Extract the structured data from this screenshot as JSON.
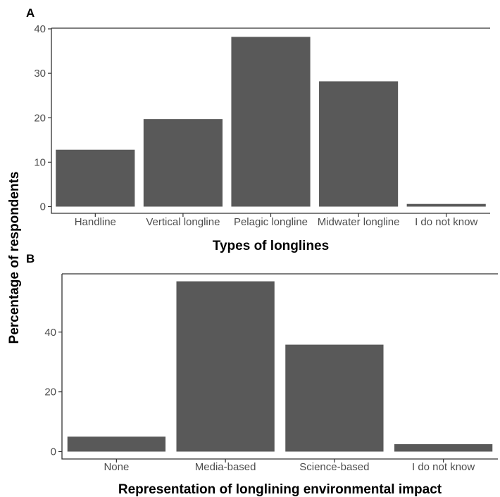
{
  "ylabel": "Percentage of respondents",
  "bar_color": "#595959",
  "chart_data": [
    {
      "type": "bar",
      "panel": "A",
      "title": "",
      "xlabel": "Types of longlines",
      "ylabel": "Percentage of respondents",
      "categories": [
        "Handline",
        "Vertical longline",
        "Pelagic longline",
        "Midwater longline",
        "I do not know"
      ],
      "values": [
        12.8,
        19.7,
        38.2,
        28.2,
        0.6
      ],
      "ylim": [
        0,
        40
      ],
      "yticks": [
        0,
        10,
        20,
        30,
        40
      ],
      "grid": false,
      "legend": "none",
      "color": "#595959"
    },
    {
      "type": "bar",
      "panel": "B",
      "title": "",
      "xlabel": "Representation of longlining environmental impact",
      "ylabel": "Percentage of respondents",
      "categories": [
        "None",
        "Media-based",
        "Science-based",
        "I do not know"
      ],
      "values": [
        5.0,
        57.0,
        35.8,
        2.5
      ],
      "ylim": [
        0,
        59.5
      ],
      "yticks": [
        0,
        20,
        40
      ],
      "grid": false,
      "legend": "none",
      "color": "#595959"
    }
  ]
}
